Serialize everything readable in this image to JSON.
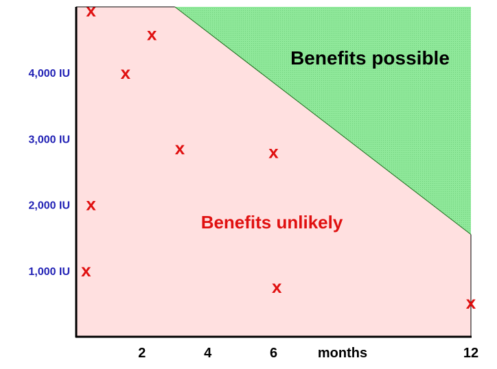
{
  "chart_data": {
    "type": "scatter",
    "title": "",
    "xlabel": "months",
    "ylabel": "",
    "xlim": [
      0,
      12
    ],
    "ylim": [
      0,
      5000
    ],
    "x_ticks": [
      {
        "value": 2,
        "label": "2"
      },
      {
        "value": 4,
        "label": "4"
      },
      {
        "value": 6,
        "label": "6"
      },
      {
        "value": 12,
        "label": "12"
      }
    ],
    "y_ticks": [
      {
        "value": 1000,
        "label": "1,000 IU"
      },
      {
        "value": 2000,
        "label": "2,000 IU"
      },
      {
        "value": 3000,
        "label": "3,000 IU"
      },
      {
        "value": 4000,
        "label": "4,000 IU"
      }
    ],
    "marker_symbol": "x",
    "points": [
      {
        "x": 0.45,
        "y": 4940
      },
      {
        "x": 2.3,
        "y": 4580
      },
      {
        "x": 1.5,
        "y": 3990
      },
      {
        "x": 3.15,
        "y": 2850
      },
      {
        "x": 6.0,
        "y": 2790
      },
      {
        "x": 0.45,
        "y": 2000
      },
      {
        "x": 0.3,
        "y": 1000
      },
      {
        "x": 6.1,
        "y": 750
      },
      {
        "x": 12.0,
        "y": 510
      }
    ],
    "regions": [
      {
        "label": "Benefits possible",
        "color": "#8fe89a",
        "boundary": [
          [
            3.0,
            5000
          ],
          [
            12.0,
            1550
          ]
        ]
      },
      {
        "label": "Benefits unlikely",
        "color": "#ffe0e0"
      }
    ],
    "colors": {
      "marker": "#e01010",
      "y_labels": "#1f1fb4",
      "boundary_line": "#1a6b1a"
    }
  }
}
